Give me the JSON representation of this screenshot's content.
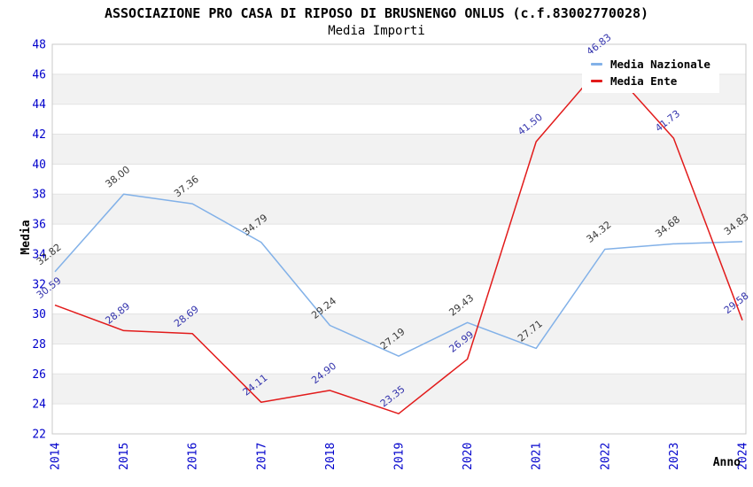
{
  "chart_data": {
    "type": "line",
    "title": "ASSOCIAZIONE PRO CASA DI RIPOSO DI BRUSNENGO ONLUS (c.f.83002770028)",
    "subtitle": "Media Importi",
    "xlabel": "Anno",
    "ylabel": "Media",
    "categories": [
      "2014",
      "2015",
      "2016",
      "2017",
      "2018",
      "2019",
      "2020",
      "2021",
      "2022",
      "2023",
      "2024"
    ],
    "series": [
      {
        "name": "Media Nazionale",
        "color": "#82b1e8",
        "label_color": "#3a3a3a",
        "values": [
          32.82,
          38.0,
          37.36,
          34.79,
          29.24,
          27.19,
          29.43,
          27.71,
          34.32,
          34.68,
          34.83
        ]
      },
      {
        "name": "Media Ente",
        "color": "#e21b1b",
        "label_color": "#3434ad",
        "values": [
          30.59,
          28.89,
          28.69,
          24.11,
          24.9,
          23.35,
          26.99,
          41.5,
          46.83,
          41.73,
          29.58
        ]
      }
    ],
    "ylim": [
      22,
      48
    ],
    "ytick_step": 2,
    "grid": true,
    "legend_position": "top-right",
    "styles": {
      "tick_label_color": "#0000cc",
      "band_color": "#f2f2f2",
      "grid_color": "#e3e3e3",
      "border_color": "#c9c9c9",
      "background": "#ffffff",
      "value_label_decimals": 2
    }
  }
}
